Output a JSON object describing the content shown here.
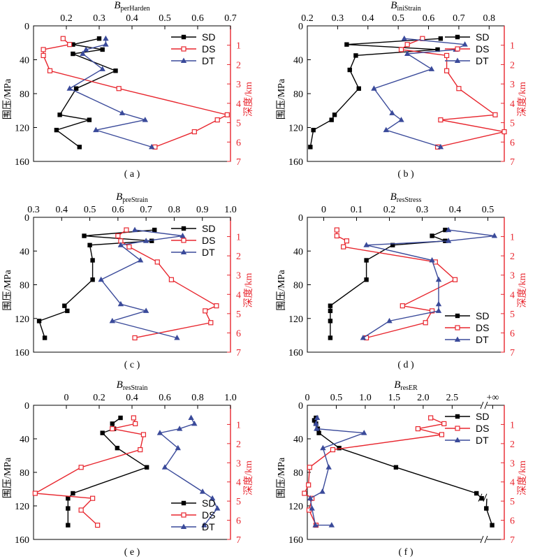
{
  "figure": {
    "label_left": "围压/MPa",
    "label_right": "深度/km"
  },
  "chart_data": [
    {
      "type": "line",
      "panel_label": "( a )",
      "title_base": "B",
      "title_sub": "perHarden",
      "xlim": [
        0.1,
        0.7
      ],
      "xticks": [
        0.2,
        0.3,
        0.4,
        0.5,
        0.6,
        0.7
      ],
      "xticklabels": [
        "0.2",
        "0.3",
        "0.4",
        "0.5",
        "0.6",
        "0.7"
      ],
      "ylabel": "围压/MPa",
      "ylim": [
        0,
        160
      ],
      "yticks": [
        0,
        40,
        80,
        120,
        160
      ],
      "ylabel_right": "深度/km",
      "depth_ticks": [
        1,
        2,
        3,
        4,
        5,
        6,
        7
      ],
      "legend": "top-right",
      "series": [
        {
          "name": "SD",
          "color": "#000000",
          "marker": "square-filled",
          "x": [
            0.3,
            0.22,
            0.31,
            0.22,
            0.35,
            0.23,
            0.18,
            0.27,
            0.17,
            0.24
          ],
          "y": [
            15,
            22,
            28,
            33,
            53,
            74,
            105,
            111,
            123,
            143
          ]
        },
        {
          "name": "DS",
          "color": "#e8262e",
          "marker": "square-open",
          "x": [
            0.19,
            0.21,
            0.13,
            0.13,
            0.15,
            0.36,
            0.69,
            0.66,
            0.59,
            0.47
          ],
          "y": [
            15,
            22,
            28,
            35,
            53,
            74,
            105,
            111,
            125,
            143
          ]
        },
        {
          "name": "DT",
          "color": "#3a4a9a",
          "marker": "triangle-filled",
          "x": [
            0.32,
            0.32,
            0.26,
            0.25,
            0.31,
            0.21,
            0.37,
            0.44,
            0.29,
            0.46
          ],
          "y": [
            15,
            22,
            28,
            33,
            51,
            74,
            103,
            111,
            123,
            143
          ]
        }
      ]
    },
    {
      "type": "line",
      "panel_label": "( b )",
      "title_base": "B",
      "title_sub": "iniStrain",
      "xlim": [
        0.2,
        0.85
      ],
      "xticks": [
        0.2,
        0.3,
        0.4,
        0.5,
        0.6,
        0.7,
        0.8
      ],
      "xticklabels": [
        "0.2",
        "0.3",
        "0.4",
        "0.5",
        "0.6",
        "0.7",
        "0.8"
      ],
      "ylabel": "围压/MPa",
      "ylim": [
        0,
        160
      ],
      "yticks": [
        0,
        40,
        80,
        120,
        160
      ],
      "ylabel_right": "深度/km",
      "depth_ticks": [
        1,
        2,
        3,
        4,
        5,
        6,
        7
      ],
      "legend": "top-right",
      "series": [
        {
          "name": "SD",
          "color": "#000000",
          "marker": "square-filled",
          "x": [
            0.64,
            0.33,
            0.63,
            0.36,
            0.34,
            0.37,
            0.29,
            0.28,
            0.22,
            0.21
          ],
          "y": [
            15,
            22,
            28,
            35,
            52,
            74,
            105,
            111,
            123,
            143
          ]
        },
        {
          "name": "DS",
          "color": "#e8262e",
          "marker": "square-open",
          "x": [
            0.58,
            0.53,
            0.51,
            0.66,
            0.66,
            0.7,
            0.82,
            0.64,
            0.85,
            0.63
          ],
          "y": [
            15,
            22,
            28,
            35,
            53,
            74,
            105,
            111,
            125,
            143
          ]
        },
        {
          "name": "DT",
          "color": "#3a4a9a",
          "marker": "triangle-filled",
          "x": [
            0.52,
            0.72,
            0.69,
            0.53,
            0.61,
            0.42,
            0.48,
            0.51,
            0.46,
            0.64
          ],
          "y": [
            15,
            22,
            28,
            33,
            51,
            74,
            103,
            111,
            123,
            143
          ]
        }
      ]
    },
    {
      "type": "line",
      "panel_label": "( c )",
      "title_base": "B",
      "title_sub": "preStrain",
      "xlim": [
        0.3,
        1.0
      ],
      "xticks": [
        0.3,
        0.4,
        0.5,
        0.6,
        0.7,
        0.8,
        0.9,
        1.0
      ],
      "xticklabels": [
        "0.3",
        "0.4",
        "0.5",
        "0.6",
        "0.7",
        "0.8",
        "0.9",
        "1.0"
      ],
      "ylabel": "围压/MPa",
      "ylim": [
        0,
        160
      ],
      "yticks": [
        0,
        40,
        80,
        120,
        160
      ],
      "ylabel_right": "深度/km",
      "depth_ticks": [
        1,
        2,
        3,
        4,
        5,
        6,
        7
      ],
      "legend": "top-right",
      "series": [
        {
          "name": "SD",
          "color": "#000000",
          "marker": "square-filled",
          "x": [
            0.73,
            0.48,
            0.72,
            0.5,
            0.51,
            0.51,
            0.41,
            0.42,
            0.32,
            0.34
          ],
          "y": [
            15,
            22,
            28,
            33,
            51,
            74,
            105,
            111,
            123,
            143
          ]
        },
        {
          "name": "DS",
          "color": "#e8262e",
          "marker": "square-open",
          "x": [
            0.63,
            0.6,
            0.61,
            0.64,
            0.74,
            0.79,
            0.95,
            0.91,
            0.93,
            0.66
          ],
          "y": [
            15,
            22,
            28,
            35,
            53,
            74,
            105,
            111,
            125,
            143
          ]
        },
        {
          "name": "DT",
          "color": "#3a4a9a",
          "marker": "triangle-filled",
          "x": [
            0.66,
            0.83,
            0.7,
            0.61,
            0.68,
            0.54,
            0.61,
            0.7,
            0.58,
            0.81
          ],
          "y": [
            15,
            22,
            28,
            33,
            51,
            74,
            103,
            111,
            123,
            143
          ]
        }
      ]
    },
    {
      "type": "line",
      "panel_label": "( d )",
      "title_base": "B",
      "title_sub": "resStress",
      "xlim": [
        -0.05,
        0.55
      ],
      "xticks": [
        0,
        0.1,
        0.2,
        0.3,
        0.4,
        0.5
      ],
      "xticklabels": [
        "0",
        "0.1",
        "0.2",
        "0.3",
        "0.4",
        "0.5"
      ],
      "ylabel": "围压/MPa",
      "ylim": [
        0,
        160
      ],
      "yticks": [
        0,
        40,
        80,
        120,
        160
      ],
      "ylabel_right": "深度/km",
      "depth_ticks": [
        1,
        2,
        3,
        4,
        5,
        6,
        7
      ],
      "legend": "bottom-right",
      "series": [
        {
          "name": "SD",
          "color": "#000000",
          "marker": "square-filled",
          "x": [
            0.37,
            0.33,
            0.37,
            0.21,
            0.13,
            0.13,
            0.02,
            0.02,
            0.02,
            0.02
          ],
          "y": [
            15,
            22,
            28,
            33,
            51,
            74,
            105,
            111,
            123,
            143
          ]
        },
        {
          "name": "DS",
          "color": "#e8262e",
          "marker": "square-open",
          "x": [
            0.04,
            0.04,
            0.07,
            0.06,
            0.34,
            0.4,
            0.24,
            0.33,
            0.31,
            0.13
          ],
          "y": [
            15,
            22,
            28,
            35,
            53,
            74,
            105,
            111,
            125,
            143
          ]
        },
        {
          "name": "DT",
          "color": "#3a4a9a",
          "marker": "triangle-filled",
          "x": [
            0.38,
            0.52,
            0.38,
            0.13,
            0.33,
            0.35,
            0.35,
            0.35,
            0.2,
            0.12
          ],
          "y": [
            15,
            22,
            28,
            33,
            51,
            74,
            103,
            111,
            123,
            143
          ]
        }
      ]
    },
    {
      "type": "line",
      "panel_label": "( e )",
      "title_base": "B",
      "title_sub": "resStrain",
      "xlim": [
        -0.2,
        1.0
      ],
      "xticks": [
        0,
        0.2,
        0.4,
        0.6,
        0.8,
        1.0
      ],
      "xticklabels": [
        "0",
        "0.2",
        "0.4",
        "0.6",
        "0.8",
        "1.0"
      ],
      "ylabel": "围压/MPa",
      "ylim": [
        0,
        160
      ],
      "yticks": [
        0,
        40,
        80,
        120,
        160
      ],
      "ylabel_right": "深度/km",
      "depth_ticks": [
        1,
        2,
        3,
        4,
        5,
        6,
        7
      ],
      "legend": "bottom-right",
      "series": [
        {
          "name": "SD",
          "color": "#000000",
          "marker": "square-filled",
          "x": [
            0.33,
            0.28,
            0.29,
            0.22,
            0.31,
            0.49,
            0.04,
            0.01,
            0.01,
            0.01
          ],
          "y": [
            15,
            22,
            28,
            33,
            51,
            74,
            105,
            111,
            123,
            143
          ]
        },
        {
          "name": "DS",
          "color": "#e8262e",
          "marker": "square-open",
          "x": [
            0.41,
            0.42,
            0.28,
            0.47,
            0.45,
            0.09,
            -0.19,
            0.16,
            0.09,
            0.19
          ],
          "y": [
            15,
            22,
            28,
            35,
            53,
            74,
            105,
            111,
            125,
            143
          ]
        },
        {
          "name": "DT",
          "color": "#3a4a9a",
          "marker": "triangle-filled",
          "x": [
            0.76,
            0.78,
            0.69,
            0.57,
            0.68,
            0.6,
            0.83,
            0.89,
            0.92,
            0.84
          ],
          "y": [
            15,
            22,
            28,
            33,
            51,
            74,
            103,
            111,
            123,
            143
          ]
        }
      ]
    },
    {
      "type": "line",
      "panel_label": "( f )",
      "title_base": "B",
      "title_sub": "resER",
      "xlim": [
        0,
        3.4
      ],
      "xticks": [
        0,
        0.5,
        1.0,
        1.5,
        2.0,
        2.5
      ],
      "xticklabels": [
        "0",
        "0.5",
        "1.0",
        "1.5",
        "2.0",
        "2.5"
      ],
      "x_extra_tick_label": "+∞",
      "x_axis_break": "after 2.5",
      "ylabel": "围压/MPa",
      "ylim": [
        0,
        160
      ],
      "yticks": [
        0,
        40,
        80,
        120,
        160
      ],
      "ylabel_right": "深度/km",
      "depth_ticks": [
        1,
        2,
        3,
        4,
        5,
        6,
        7
      ],
      "legend": "top-right",
      "series": [
        {
          "name": "SD",
          "color": "#000000",
          "marker": "square-filled",
          "x": [
            0.15,
            0.12,
            0.15,
            0.18,
            0.2,
            0.55,
            1.53,
            2.92,
            3.01,
            3.09,
            3.19
          ],
          "y": [
            15,
            18,
            22,
            28,
            33,
            51,
            74,
            105,
            111,
            123,
            143
          ]
        },
        {
          "name": "DS",
          "color": "#e8262e",
          "marker": "square-open",
          "x": [
            2.13,
            2.36,
            1.91,
            2.32,
            0.44,
            0.04,
            0.02,
            -0.05,
            0.08,
            0.03,
            0.15
          ],
          "y": [
            15,
            22,
            28,
            35,
            53,
            74,
            95,
            105,
            111,
            125,
            143
          ]
        },
        {
          "name": "DT",
          "color": "#3a4a9a",
          "marker": "triangle-filled",
          "x": [
            0.17,
            0.15,
            0.16,
            0.98,
            0.27,
            0.37,
            0.26,
            0.05,
            0.08,
            0.14,
            0.42
          ],
          "y": [
            15,
            22,
            28,
            33,
            51,
            74,
            103,
            111,
            123,
            143,
            143
          ]
        }
      ]
    }
  ]
}
